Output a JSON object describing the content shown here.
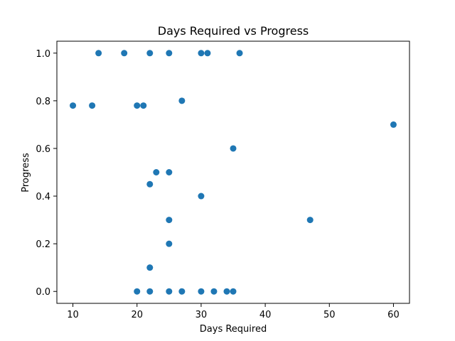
{
  "chart_data": {
    "type": "scatter",
    "title": "Days Required vs Progress",
    "xlabel": "Days Required",
    "ylabel": "Progress",
    "xlim": [
      7.5,
      62.5
    ],
    "ylim": [
      -0.05,
      1.05
    ],
    "xticks": [
      10,
      20,
      30,
      40,
      50,
      60
    ],
    "yticks": [
      0.0,
      0.2,
      0.4,
      0.6,
      0.8,
      1.0
    ],
    "xtick_labels": [
      "10",
      "20",
      "30",
      "40",
      "50",
      "60"
    ],
    "ytick_labels": [
      "0.0",
      "0.2",
      "0.4",
      "0.6",
      "0.8",
      "1.0"
    ],
    "grid": false,
    "marker_color": "#1f77b4",
    "points": [
      {
        "x": 14,
        "y": 1.0
      },
      {
        "x": 18,
        "y": 1.0
      },
      {
        "x": 22,
        "y": 1.0
      },
      {
        "x": 25,
        "y": 1.0
      },
      {
        "x": 30,
        "y": 1.0
      },
      {
        "x": 31,
        "y": 1.0
      },
      {
        "x": 36,
        "y": 1.0
      },
      {
        "x": 10,
        "y": 0.78
      },
      {
        "x": 13,
        "y": 0.78
      },
      {
        "x": 20,
        "y": 0.78
      },
      {
        "x": 21,
        "y": 0.78
      },
      {
        "x": 27,
        "y": 0.8
      },
      {
        "x": 60,
        "y": 0.7
      },
      {
        "x": 35,
        "y": 0.6
      },
      {
        "x": 23,
        "y": 0.5
      },
      {
        "x": 25,
        "y": 0.5
      },
      {
        "x": 22,
        "y": 0.45
      },
      {
        "x": 30,
        "y": 0.4
      },
      {
        "x": 25,
        "y": 0.3
      },
      {
        "x": 47,
        "y": 0.3
      },
      {
        "x": 25,
        "y": 0.2
      },
      {
        "x": 22,
        "y": 0.1
      },
      {
        "x": 20,
        "y": 0.0
      },
      {
        "x": 22,
        "y": 0.0
      },
      {
        "x": 25,
        "y": 0.0
      },
      {
        "x": 27,
        "y": 0.0
      },
      {
        "x": 30,
        "y": 0.0
      },
      {
        "x": 32,
        "y": 0.0
      },
      {
        "x": 34,
        "y": 0.0
      },
      {
        "x": 35,
        "y": 0.0
      }
    ]
  }
}
